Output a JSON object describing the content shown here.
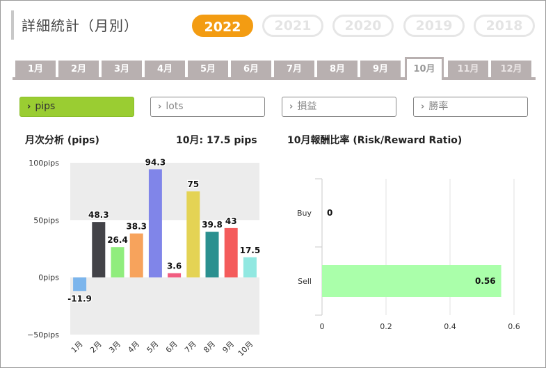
{
  "page_title": "詳細統計（月別）",
  "years": [
    {
      "label": "2022",
      "active": true
    },
    {
      "label": "2021",
      "active": false
    },
    {
      "label": "2020",
      "active": false
    },
    {
      "label": "2019",
      "active": false
    },
    {
      "label": "2018",
      "active": false
    }
  ],
  "months": [
    {
      "label": "1月",
      "state": "normal"
    },
    {
      "label": "2月",
      "state": "normal"
    },
    {
      "label": "3月",
      "state": "normal"
    },
    {
      "label": "4月",
      "state": "normal"
    },
    {
      "label": "5月",
      "state": "normal"
    },
    {
      "label": "6月",
      "state": "normal"
    },
    {
      "label": "7月",
      "state": "normal"
    },
    {
      "label": "8月",
      "state": "normal"
    },
    {
      "label": "9月",
      "state": "normal"
    },
    {
      "label": "10月",
      "state": "active"
    },
    {
      "label": "11月",
      "state": "disabled"
    },
    {
      "label": "12月",
      "state": "disabled"
    }
  ],
  "metrics": [
    {
      "label": "pips",
      "active": true
    },
    {
      "label": "lots",
      "active": false
    },
    {
      "label": "損益",
      "active": false
    },
    {
      "label": "勝率",
      "active": false
    }
  ],
  "left_chart_header": {
    "title": "月次分析 (pips)",
    "summary": "10月:  17.5 pips"
  },
  "right_chart_header": {
    "title": "10月報酬比率 (Risk/Reward Ratio)"
  },
  "chart_data": [
    {
      "type": "bar",
      "title": "月次分析 (pips)",
      "categories": [
        "1月",
        "2月",
        "3月",
        "4月",
        "5月",
        "6月",
        "7月",
        "8月",
        "9月",
        "10月"
      ],
      "values": [
        -11.9,
        48.3,
        26.4,
        38.3,
        94.3,
        3.6,
        75,
        39.8,
        43,
        17.5
      ],
      "labels": [
        "-11.9",
        "48.3",
        "26.4",
        "38.3",
        "94.3",
        "3.6",
        "75",
        "39.8",
        "43",
        "17.5"
      ],
      "colors": [
        "#7cb5ec",
        "#434348",
        "#90ed7d",
        "#f7a35c",
        "#8085e9",
        "#f15c80",
        "#e4d354",
        "#2b908f",
        "#f45b5b",
        "#91e8e1"
      ],
      "ylim": [
        -50,
        100
      ],
      "yticks": [
        100,
        50,
        0,
        -50
      ],
      "ytick_labels": [
        "100pips",
        "50pips",
        "0pips",
        "−50pips"
      ],
      "bands": "alternating grey bands every 50"
    },
    {
      "type": "bar",
      "orientation": "horizontal",
      "title": "10月報酬比率 (Risk/Reward Ratio)",
      "categories": [
        "Buy",
        "Sell"
      ],
      "values": [
        0,
        0.56
      ],
      "labels": [
        "0",
        "0.56"
      ],
      "colors": [
        "#aaffaa",
        "#aaffaa"
      ],
      "xlim": [
        0,
        0.6
      ],
      "xticks": [
        0,
        0.2,
        0.4,
        0.6
      ],
      "xtick_labels": [
        "0",
        "0.2",
        "0.4",
        "0.6"
      ]
    }
  ]
}
